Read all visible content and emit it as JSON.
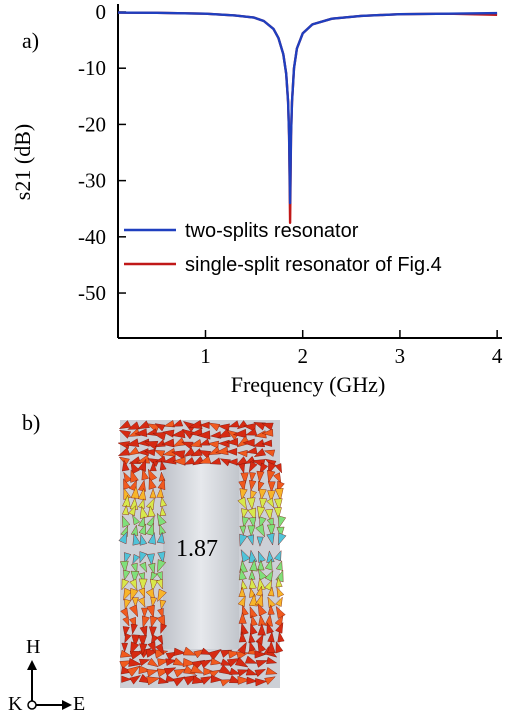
{
  "panels": {
    "a_label": "a)",
    "b_label": "b)"
  },
  "chart_data": {
    "type": "line",
    "xlabel": "Frequency (GHz)",
    "ylabel": "s21 (dB)",
    "xlim": [
      0.1,
      4.05
    ],
    "ylim": [
      -58,
      0
    ],
    "xticks": [
      1,
      2,
      3,
      4
    ],
    "yticks": [
      0,
      -10,
      -20,
      -30,
      -40,
      -50
    ],
    "grid": false,
    "legend_position": "lower-left",
    "resonance_ghz": 1.87,
    "series": [
      {
        "name": "two-splits resonator",
        "color": "#1f3fbf",
        "x": [
          0.1,
          0.5,
          1.0,
          1.3,
          1.5,
          1.6,
          1.7,
          1.75,
          1.8,
          1.83,
          1.85,
          1.86,
          1.87,
          1.88,
          1.89,
          1.91,
          1.94,
          2.0,
          2.1,
          2.3,
          2.6,
          3.0,
          3.5,
          4.0
        ],
        "values": [
          -0.1,
          -0.15,
          -0.3,
          -0.6,
          -1.0,
          -1.6,
          -3.0,
          -4.6,
          -7.5,
          -11.0,
          -16.0,
          -22.0,
          -34.0,
          -22.0,
          -16.0,
          -10.0,
          -6.5,
          -3.8,
          -2.2,
          -1.2,
          -0.7,
          -0.4,
          -0.3,
          -0.2
        ]
      },
      {
        "name": "single-split resonator of Fig.4",
        "color": "#c01818",
        "x": [
          0.1,
          0.5,
          1.0,
          1.3,
          1.5,
          1.6,
          1.7,
          1.75,
          1.8,
          1.83,
          1.85,
          1.86,
          1.87,
          1.88,
          1.89,
          1.91,
          1.94,
          2.0,
          2.1,
          2.3,
          2.6,
          3.0,
          3.5,
          4.0
        ],
        "values": [
          -0.1,
          -0.15,
          -0.3,
          -0.6,
          -1.0,
          -1.6,
          -3.0,
          -4.6,
          -7.5,
          -11.0,
          -16.0,
          -22.0,
          -37.5,
          -22.0,
          -16.0,
          -10.0,
          -6.5,
          -3.8,
          -2.2,
          -1.2,
          -0.7,
          -0.4,
          -0.3,
          -0.5
        ]
      }
    ]
  },
  "simulation": {
    "frequency_value": "1.87",
    "field_colors": [
      "#d62a12",
      "#f05a1e",
      "#f7b52a",
      "#d7e84b",
      "#7fe07a",
      "#4fc3d9"
    ],
    "background_color": "#cdd0d6"
  },
  "axes_indicator": {
    "h": "H",
    "k": "K",
    "e": "E"
  }
}
